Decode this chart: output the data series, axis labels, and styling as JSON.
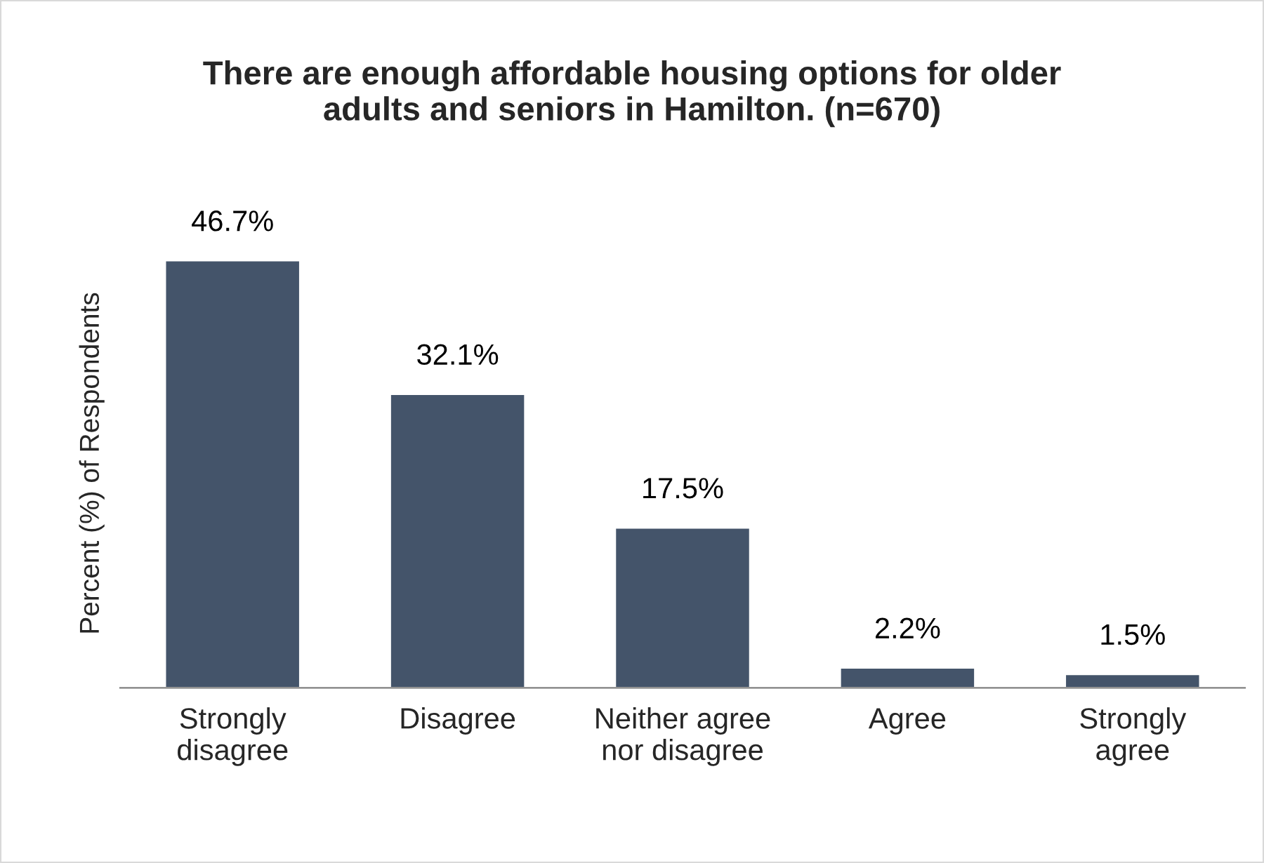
{
  "chart_data": {
    "type": "bar",
    "title": "There are enough affordable housing options for older\nadults and seniors in Hamilton. (n=670)",
    "ylabel": "Percent (%) of Respondents",
    "categories": [
      "Strongly\ndisagree",
      "Disagree",
      "Neither agree\nnor disagree",
      "Agree",
      "Strongly\nagree"
    ],
    "values": [
      46.7,
      32.1,
      17.5,
      2.2,
      1.5
    ],
    "value_labels": [
      "46.7%",
      "32.1%",
      "17.5%",
      "2.2%",
      "1.5%"
    ],
    "color": "#44546a",
    "tick_labels": "x"
  }
}
